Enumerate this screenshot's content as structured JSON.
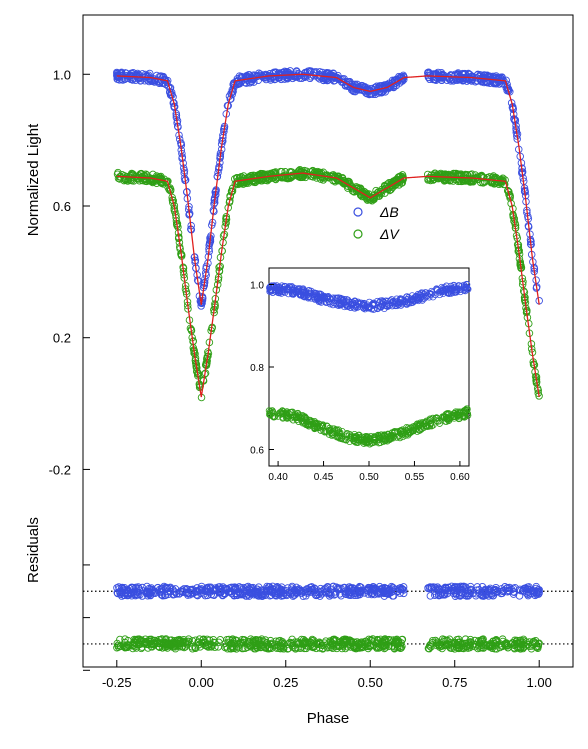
{
  "chart_data": {
    "type": "scatter",
    "xlabel": "Phase",
    "ylabel_top": "Normalized Light",
    "ylabel_bottom": "Residuals",
    "xlim": [
      -0.35,
      1.1
    ],
    "ylim": [
      -0.8,
      1.18
    ],
    "x_ticks": [
      {
        "value": -0.25,
        "label": "-0.25"
      },
      {
        "value": 0.0,
        "label": "0.00"
      },
      {
        "value": 0.25,
        "label": "0.25"
      },
      {
        "value": 0.5,
        "label": "0.50"
      },
      {
        "value": 0.75,
        "label": "0.75"
      },
      {
        "value": 1.0,
        "label": "1.00"
      }
    ],
    "y_ticks": [
      {
        "value": 1.0,
        "label": "1.0"
      },
      {
        "value": 0.6,
        "label": "0.6"
      },
      {
        "value": 0.2,
        "label": "0.2"
      },
      {
        "value": -0.2,
        "label": "-0.2"
      }
    ],
    "legend": [
      {
        "name": "ΔB",
        "color": "#3a4fe0"
      },
      {
        "name": "ΔV",
        "color": "#2f9f16"
      }
    ],
    "model_color": "#e0201e",
    "series": [
      {
        "name": "ΔB",
        "color": "#3a4fe0",
        "x": [
          -0.25,
          -0.15,
          -0.1,
          -0.08,
          -0.06,
          -0.04,
          -0.02,
          0.0,
          0.02,
          0.04,
          0.06,
          0.08,
          0.1,
          0.2,
          0.3,
          0.4,
          0.45,
          0.5,
          0.55,
          0.6,
          0.67,
          0.8,
          0.9,
          0.92,
          0.94,
          0.96,
          0.98,
          1.0
        ],
        "y": [
          0.995,
          0.99,
          0.98,
          0.91,
          0.78,
          0.62,
          0.44,
          0.3,
          0.44,
          0.62,
          0.78,
          0.91,
          0.98,
          0.995,
          1.0,
          0.99,
          0.96,
          0.948,
          0.96,
          0.99,
          0.995,
          0.99,
          0.98,
          0.91,
          0.78,
          0.62,
          0.44,
          0.3
        ]
      },
      {
        "name": "ΔV",
        "color": "#2f9f16",
        "x": [
          -0.25,
          -0.15,
          -0.1,
          -0.08,
          -0.06,
          -0.04,
          -0.02,
          0.0,
          0.02,
          0.04,
          0.06,
          0.08,
          0.1,
          0.2,
          0.3,
          0.4,
          0.45,
          0.5,
          0.55,
          0.6,
          0.67,
          0.8,
          0.9,
          0.92,
          0.94,
          0.96,
          0.98,
          1.0
        ],
        "y": [
          0.69,
          0.685,
          0.675,
          0.6,
          0.46,
          0.3,
          0.15,
          0.02,
          0.15,
          0.3,
          0.46,
          0.6,
          0.675,
          0.69,
          0.7,
          0.685,
          0.655,
          0.625,
          0.655,
          0.685,
          0.69,
          0.685,
          0.675,
          0.6,
          0.46,
          0.3,
          0.15,
          0.02
        ]
      }
    ],
    "residual_baselines": [
      {
        "name": "ΔB",
        "y": -0.57
      },
      {
        "name": "ΔV",
        "y": -0.73
      }
    ],
    "residual_ticks": [
      -0.49,
      -0.65,
      -0.81
    ],
    "inset": {
      "xlim": [
        0.39,
        0.61
      ],
      "ylim": [
        0.56,
        1.04
      ],
      "x_ticks": [
        {
          "value": 0.4,
          "label": "0.40"
        },
        {
          "value": 0.45,
          "label": "0.45"
        },
        {
          "value": 0.5,
          "label": "0.50"
        },
        {
          "value": 0.55,
          "label": "0.55"
        },
        {
          "value": 0.6,
          "label": "0.60"
        }
      ],
      "y_ticks": [
        {
          "value": 1.0,
          "label": "1.0"
        },
        {
          "value": 0.8,
          "label": "0.8"
        },
        {
          "value": 0.6,
          "label": "0.6"
        }
      ],
      "series": [
        {
          "name": "ΔB",
          "x": [
            0.39,
            0.42,
            0.45,
            0.48,
            0.5,
            0.52,
            0.55,
            0.58,
            0.61
          ],
          "y": [
            0.99,
            0.985,
            0.965,
            0.952,
            0.948,
            0.952,
            0.965,
            0.985,
            0.995
          ]
        },
        {
          "name": "ΔV",
          "x": [
            0.39,
            0.42,
            0.45,
            0.48,
            0.5,
            0.52,
            0.55,
            0.58,
            0.61
          ],
          "y": [
            0.69,
            0.68,
            0.65,
            0.628,
            0.622,
            0.628,
            0.65,
            0.675,
            0.69
          ]
        }
      ]
    }
  }
}
